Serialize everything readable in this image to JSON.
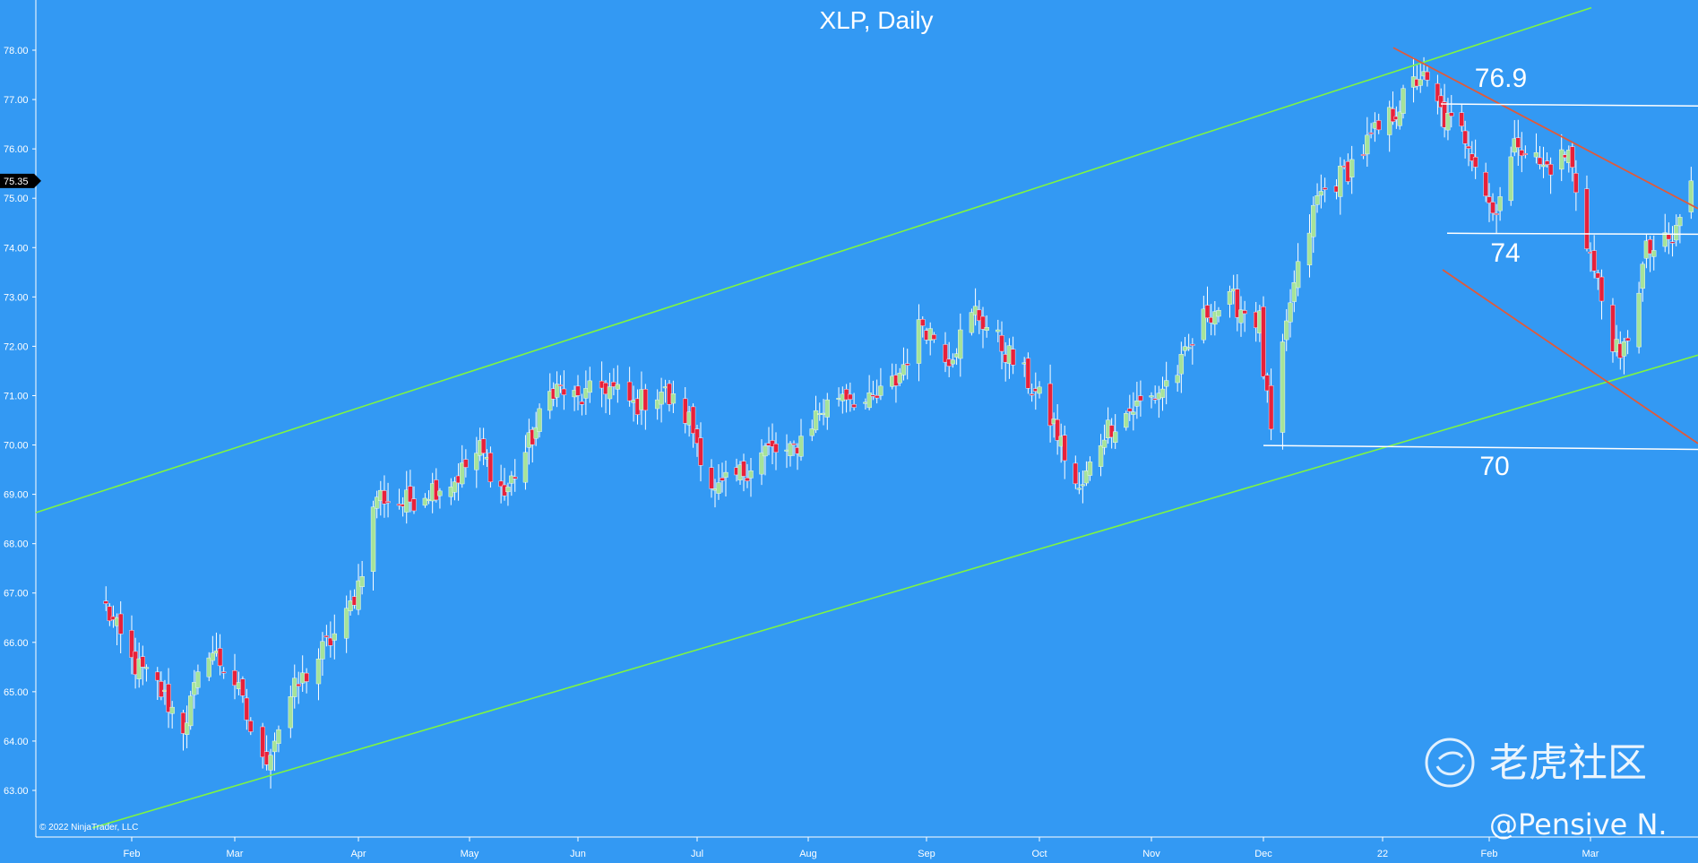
{
  "chart_data": {
    "type": "candlestick",
    "title": "XLP, Daily",
    "ylim": [
      62.5,
      78.9
    ],
    "y_ticks": [
      "78.00",
      "77.00",
      "76.00",
      "75.00",
      "74.00",
      "73.00",
      "72.00",
      "71.00",
      "70.00",
      "69.00",
      "68.00",
      "67.00",
      "66.00",
      "65.00",
      "64.00",
      "63.00"
    ],
    "x_tick_labels": [
      "Feb",
      "Mar",
      "Apr",
      "May",
      "Jun",
      "Jul",
      "Aug",
      "Sep",
      "Oct",
      "Nov",
      "Dec",
      "22",
      "Feb",
      "Mar"
    ],
    "last_price_label": "75.35",
    "copyright": "© 2022 NinjaTrader, LLC",
    "level_labels": [
      "76.9",
      "74",
      "70"
    ],
    "colors": {
      "background": "#3399f3",
      "up": "#a6e39a",
      "down": "#e8213a",
      "wick": "#ffffff",
      "channel": "#7ef542",
      "resistance": "#e05a3a",
      "level": "#ffffff"
    },
    "close_path": [
      [
        "Jan 25",
        66.7
      ],
      [
        "Feb 1",
        65.6
      ],
      [
        "Feb 8",
        65.1
      ],
      [
        "Feb 15",
        64.3
      ],
      [
        "Feb 22",
        65.9
      ],
      [
        "Mar 1",
        65.2
      ],
      [
        "Mar 8",
        63.5
      ],
      [
        "Mar 15",
        64.9
      ],
      [
        "Mar 22",
        65.7
      ],
      [
        "Mar 29",
        66.5
      ],
      [
        "Apr 1",
        67.2
      ],
      [
        "Apr 6",
        69.0
      ],
      [
        "Apr 13",
        68.8
      ],
      [
        "Apr 20",
        69.1
      ],
      [
        "Apr 27",
        69.3
      ],
      [
        "May 4",
        69.9
      ],
      [
        "May 11",
        69.0
      ],
      [
        "May 18",
        70.0
      ],
      [
        "May 25",
        71.2
      ],
      [
        "Jun 1",
        70.9
      ],
      [
        "Jun 8",
        71.2
      ],
      [
        "Jun 15",
        70.8
      ],
      [
        "Jun 22",
        71.1
      ],
      [
        "Jun 29",
        70.5
      ],
      [
        "Jul 6",
        69.0
      ],
      [
        "Jul 13",
        69.4
      ],
      [
        "Jul 20",
        69.9
      ],
      [
        "Jul 27",
        69.8
      ],
      [
        "Aug 3",
        70.6
      ],
      [
        "Aug 10",
        71.1
      ],
      [
        "Aug 17",
        70.8
      ],
      [
        "Aug 24",
        71.3
      ],
      [
        "Aug 31",
        72.5
      ],
      [
        "Sep 7",
        71.8
      ],
      [
        "Sep 14",
        72.7
      ],
      [
        "Sep 21",
        72.0
      ],
      [
        "Sep 28",
        71.3
      ],
      [
        "Oct 5",
        70.4
      ],
      [
        "Oct 12",
        69.0
      ],
      [
        "Oct 19",
        70.3
      ],
      [
        "Oct 26",
        70.7
      ],
      [
        "Nov 2",
        71.0
      ],
      [
        "Nov 9",
        71.6
      ],
      [
        "Nov 16",
        72.7
      ],
      [
        "Nov 23",
        72.9
      ],
      [
        "Nov 30",
        72.5
      ],
      [
        "Dec 1",
        71.5
      ],
      [
        "Dec 3",
        70.2
      ],
      [
        "Dec 8",
        72.9
      ],
      [
        "Dec 15",
        75.0
      ],
      [
        "Dec 22",
        75.5
      ],
      [
        "Dec 29",
        76.2
      ],
      [
        "Jan 5",
        76.8
      ],
      [
        "Jan 12",
        77.5
      ],
      [
        "Jan 19",
        76.6
      ],
      [
        "Jan 26",
        76.2
      ],
      [
        "Feb 2",
        74.7
      ],
      [
        "Feb 9",
        76.2
      ],
      [
        "Feb 16",
        75.6
      ],
      [
        "Feb 23",
        75.9
      ],
      [
        "Mar 2",
        73.5
      ],
      [
        "Mar 9",
        71.6
      ],
      [
        "Mar 16",
        73.9
      ],
      [
        "Mar 23",
        74.1
      ],
      [
        "Mar 28",
        75.35
      ]
    ]
  },
  "watermark": {
    "brand": "老虎社区",
    "handle": "@Pensive N."
  }
}
